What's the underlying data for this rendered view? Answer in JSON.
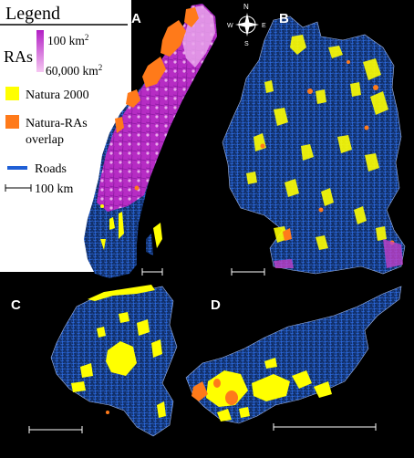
{
  "legend": {
    "title": "Legend",
    "ras_label": "RAs",
    "ras_min": "60,000 km",
    "ras_max": "100 km",
    "ras_unit_exp": "2",
    "natura_label": "Natura 2000",
    "overlap_label_line1": "Natura-RAs",
    "overlap_label_line2": "overlap",
    "roads_label": "Roads",
    "scale_label": "100 km"
  },
  "panels": {
    "a": "A",
    "b": "B",
    "c": "C",
    "d": "D"
  },
  "compass": {
    "n": "N",
    "s": "S",
    "e": "E",
    "w": "W"
  },
  "colors": {
    "background": "#000000",
    "legend_bg": "#ffffff",
    "roads": "#1f5fd6",
    "land": "#163a7a",
    "natura": "#ffff00",
    "overlap": "#ff7a1a",
    "ras_high": "#c040c8",
    "ras_low": "#f2b6ee"
  }
}
